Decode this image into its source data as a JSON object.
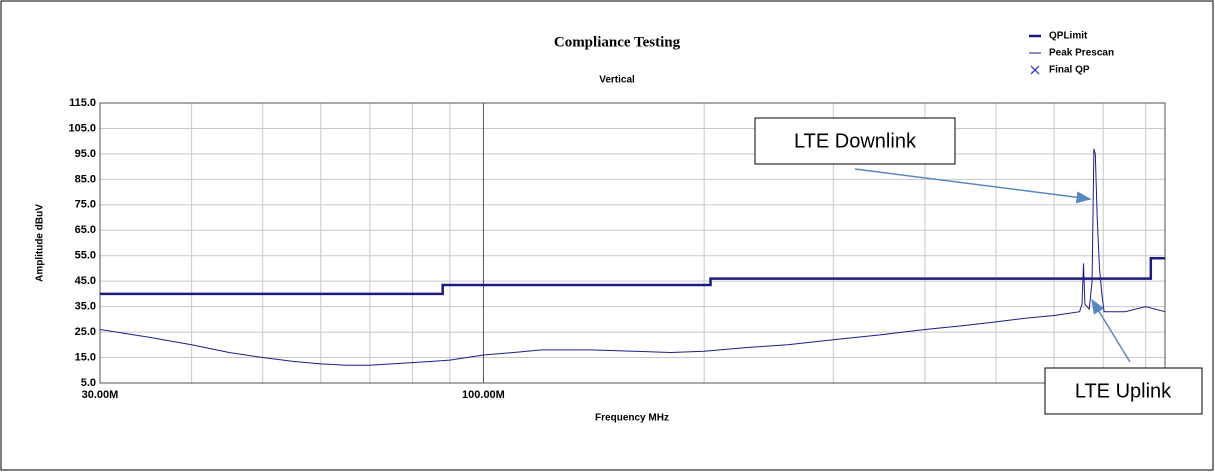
{
  "chart_data": {
    "type": "line",
    "title": "Compliance Testing",
    "subtitle": "Vertical",
    "x_label": "Frequency MHz",
    "y_label": "Amplitude dBuV",
    "log_x": true,
    "grid": true,
    "legend": "top-right",
    "xlim": [
      30,
      850
    ],
    "xticks": [
      {
        "value": 30,
        "label": "30.00M"
      },
      {
        "value": 100,
        "label": "100.00M"
      }
    ],
    "xminor": [
      40,
      50,
      60,
      70,
      80,
      90,
      200,
      300,
      400,
      500,
      600,
      700,
      800
    ],
    "ylim": [
      5,
      115
    ],
    "yticks": [
      {
        "value": 5,
        "label": "5.0"
      },
      {
        "value": 15,
        "label": "15.0"
      },
      {
        "value": 25,
        "label": "25.0"
      },
      {
        "value": 35,
        "label": "35.0"
      },
      {
        "value": 45,
        "label": "45.0"
      },
      {
        "value": 55,
        "label": "55.0"
      },
      {
        "value": 65,
        "label": "65.0"
      },
      {
        "value": 75,
        "label": "75.0"
      },
      {
        "value": 85,
        "label": "85.0"
      },
      {
        "value": 95,
        "label": "95.0"
      },
      {
        "value": 105,
        "label": "105.0"
      },
      {
        "value": 115,
        "label": "115.0"
      }
    ],
    "series": [
      {
        "name": "QPLimit",
        "color": "#1c1c7a",
        "width": 2.5,
        "x": [
          30,
          88,
          88,
          204,
          204,
          813,
          813,
          850
        ],
        "values": [
          40,
          40,
          43.5,
          43.5,
          46,
          46,
          54,
          54
        ]
      },
      {
        "name": "Peak Prescan",
        "color": "#1c1c8c",
        "width": 1,
        "x": [
          30,
          35,
          40,
          45,
          50,
          55,
          60,
          65,
          70,
          75,
          80,
          85,
          90,
          100,
          110,
          120,
          140,
          160,
          180,
          200,
          230,
          260,
          300,
          350,
          400,
          450,
          500,
          550,
          600,
          650,
          655,
          658,
          661,
          670,
          676,
          680,
          683,
          687,
          692,
          697,
          702,
          750,
          800,
          850
        ],
        "values": [
          26,
          23,
          20,
          17,
          15,
          13.5,
          12.5,
          12,
          12,
          12.5,
          13,
          13.5,
          14,
          16,
          17,
          18,
          18,
          17.5,
          17,
          17.5,
          19,
          20,
          22,
          24,
          26,
          27.5,
          29,
          30.5,
          31.5,
          33,
          36,
          52,
          36,
          34,
          45,
          97,
          95,
          70,
          50,
          40,
          33,
          33,
          35,
          33
        ]
      },
      {
        "name": "Final QP",
        "color": "#3344cc",
        "marker": "x",
        "x": [],
        "values": []
      }
    ],
    "annotations": [
      "LTE Downlink",
      "LTE Uplink"
    ]
  }
}
